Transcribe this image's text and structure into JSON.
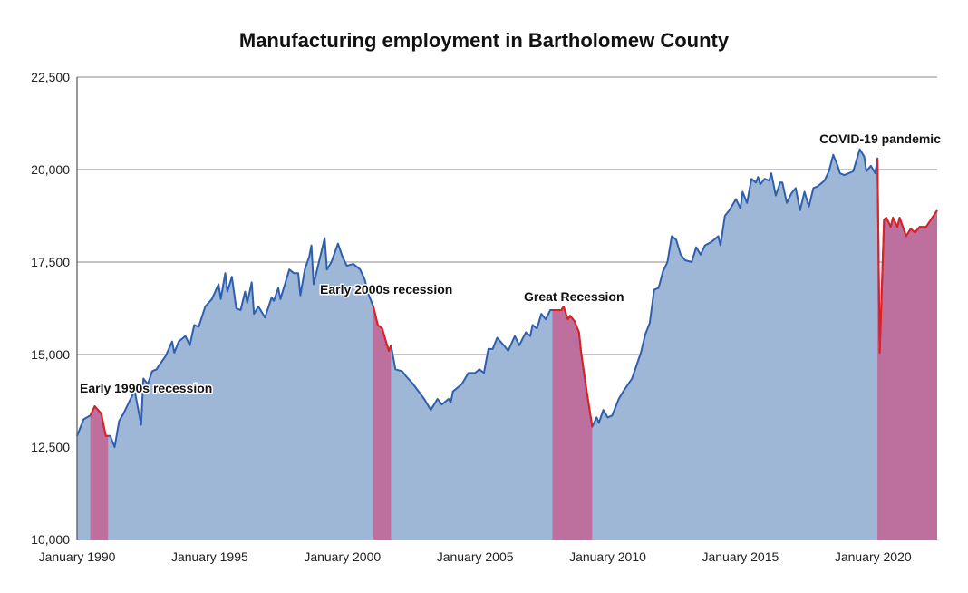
{
  "chart_data": {
    "type": "area",
    "title": "Manufacturing employment in Bartholomew County",
    "xlabel": "",
    "ylabel": "",
    "ylim": [
      10000,
      22500
    ],
    "xlim": [
      "1990-01",
      "2022-06"
    ],
    "yticks": [
      "10,000",
      "12,500",
      "15,000",
      "17,500",
      "20,000",
      "22,500"
    ],
    "ytick_values": [
      10000,
      12500,
      15000,
      17500,
      20000,
      22500
    ],
    "xticks": [
      "January 1990",
      "January 1995",
      "January 2000",
      "January 2005",
      "January 2010",
      "January 2015",
      "January 2020"
    ],
    "xtick_dates": [
      "1990-01",
      "1995-01",
      "2000-01",
      "2005-01",
      "2010-01",
      "2015-01",
      "2020-01"
    ],
    "grid": "horizontal",
    "colors": {
      "line": "#2e5fae",
      "fill": "#9fb7d6",
      "recession_line": "#e0201e",
      "recession_fill": "#bd6f9e",
      "grid": "#8a8a8a"
    },
    "recessions": [
      {
        "label": "Early 1990s recession",
        "start": "1990-07",
        "end": "1991-03"
      },
      {
        "label": "Early 2000s recession",
        "start": "2001-03",
        "end": "2001-11"
      },
      {
        "label": "Great Recession",
        "start": "2007-12",
        "end": "2009-06"
      },
      {
        "label": "COVID-19 pandemic",
        "start": "2020-03",
        "end": "2022-06"
      }
    ],
    "series": [
      {
        "x": [
          "1990-01",
          "1990-04",
          "1990-07",
          "1990-09",
          "1990-12",
          "1991-02",
          "1991-04",
          "1991-06",
          "1991-08",
          "1991-10",
          "1991-12",
          "1992-02",
          "1992-03",
          "1992-06",
          "1992-07",
          "1992-09",
          "1992-11",
          "1993-01",
          "1993-02",
          "1993-05",
          "1993-08",
          "1993-09",
          "1993-11",
          "1994-02",
          "1994-04",
          "1994-06",
          "1994-08",
          "1994-11",
          "1995-02",
          "1995-05",
          "1995-06",
          "1995-08",
          "1995-09",
          "1995-11",
          "1996-01",
          "1996-03",
          "1996-05",
          "1996-06",
          "1996-08",
          "1996-09",
          "1996-11",
          "1997-02",
          "1997-05",
          "1997-06",
          "1997-08",
          "1997-09",
          "1998-01",
          "1998-03",
          "1998-05",
          "1998-06",
          "1998-08",
          "1998-10",
          "1998-11",
          "1998-12",
          "1999-05",
          "1999-06",
          "1999-08",
          "1999-11",
          "2000-01",
          "2000-03",
          "2000-06",
          "2000-09",
          "2000-11",
          "2001-01",
          "2001-03",
          "2001-05",
          "2001-07",
          "2001-09",
          "2001-10",
          "2001-11",
          "2002-01",
          "2002-04",
          "2002-06",
          "2002-09",
          "2003-02",
          "2003-05",
          "2003-08",
          "2003-10",
          "2004-01",
          "2004-02",
          "2004-03",
          "2004-07",
          "2004-10",
          "2005-01",
          "2005-03",
          "2005-05",
          "2005-07",
          "2005-09",
          "2005-11",
          "2006-02",
          "2006-04",
          "2006-07",
          "2006-09",
          "2006-12",
          "2007-02",
          "2007-03",
          "2007-05",
          "2007-07",
          "2007-09",
          "2007-11",
          "2007-12",
          "2008-04",
          "2008-05",
          "2008-07",
          "2008-08",
          "2008-10",
          "2008-12",
          "2009-01",
          "2009-03",
          "2009-06",
          "2009-08",
          "2009-09",
          "2009-11",
          "2010-01",
          "2010-03",
          "2010-06",
          "2010-08",
          "2010-12",
          "2011-04",
          "2011-06",
          "2011-08",
          "2011-10",
          "2011-12",
          "2012-02",
          "2012-04",
          "2012-06",
          "2012-08",
          "2012-10",
          "2012-12",
          "2013-03",
          "2013-05",
          "2013-07",
          "2013-09",
          "2013-12",
          "2014-03",
          "2014-04",
          "2014-06",
          "2014-08",
          "2014-11",
          "2015-01",
          "2015-02",
          "2015-04",
          "2015-06",
          "2015-08",
          "2015-09",
          "2015-10",
          "2015-12",
          "2016-02",
          "2016-03",
          "2016-05",
          "2016-07",
          "2016-08",
          "2016-10",
          "2016-12",
          "2017-02",
          "2017-04",
          "2017-06",
          "2017-08",
          "2017-10",
          "2017-12",
          "2018-03",
          "2018-05",
          "2018-07",
          "2018-09",
          "2018-10",
          "2018-12",
          "2019-02",
          "2019-04",
          "2019-07",
          "2019-09",
          "2019-10",
          "2019-12",
          "2020-02",
          "2020-03",
          "2020-04",
          "2020-06",
          "2020-07",
          "2020-09",
          "2020-10",
          "2020-12",
          "2021-01",
          "2021-04",
          "2021-06",
          "2021-08",
          "2021-10",
          "2022-01",
          "2022-06"
        ],
        "values": [
          12800,
          13250,
          13350,
          13600,
          13400,
          12800,
          12800,
          12500,
          13200,
          13400,
          13650,
          13900,
          14050,
          13100,
          14350,
          14200,
          14550,
          14600,
          14700,
          14950,
          15350,
          15050,
          15350,
          15500,
          15250,
          15800,
          15750,
          16300,
          16500,
          16900,
          16500,
          17200,
          16700,
          17100,
          16250,
          16200,
          16700,
          16400,
          16950,
          16100,
          16300,
          16000,
          16550,
          16450,
          16800,
          16500,
          17300,
          17200,
          17200,
          16600,
          17300,
          17650,
          17950,
          16900,
          18150,
          17300,
          17500,
          18000,
          17650,
          17400,
          17450,
          17300,
          17050,
          16600,
          16300,
          15800,
          15700,
          15300,
          15100,
          15250,
          14600,
          14550,
          14400,
          14200,
          13800,
          13500,
          13800,
          13650,
          13800,
          13700,
          14000,
          14200,
          14500,
          14500,
          14600,
          14500,
          15150,
          15150,
          15450,
          15250,
          15100,
          15500,
          15250,
          15600,
          15500,
          15800,
          15700,
          16100,
          15950,
          16200,
          16200,
          16200,
          16300,
          15950,
          16050,
          15900,
          15600,
          15050,
          14200,
          13050,
          13300,
          13150,
          13500,
          13300,
          13350,
          13800,
          14000,
          14350,
          15050,
          15550,
          15850,
          16750,
          16800,
          17250,
          17500,
          18200,
          18100,
          17700,
          17550,
          17500,
          17900,
          17700,
          17950,
          18050,
          18200,
          17950,
          18750,
          18900,
          19200,
          18950,
          19400,
          19100,
          19750,
          19650,
          19800,
          19600,
          19750,
          19700,
          19900,
          19300,
          19650,
          19650,
          19100,
          19350,
          19500,
          18900,
          19400,
          19000,
          19500,
          19550,
          19700,
          19950,
          20400,
          20100,
          19900,
          19850,
          19900,
          19950,
          20550,
          20350,
          19950,
          20100,
          19900,
          20300,
          15050,
          18650,
          18700,
          18450,
          18700,
          18450,
          18700,
          18200,
          18400,
          18300,
          18450,
          18450,
          18900
        ]
      }
    ]
  }
}
